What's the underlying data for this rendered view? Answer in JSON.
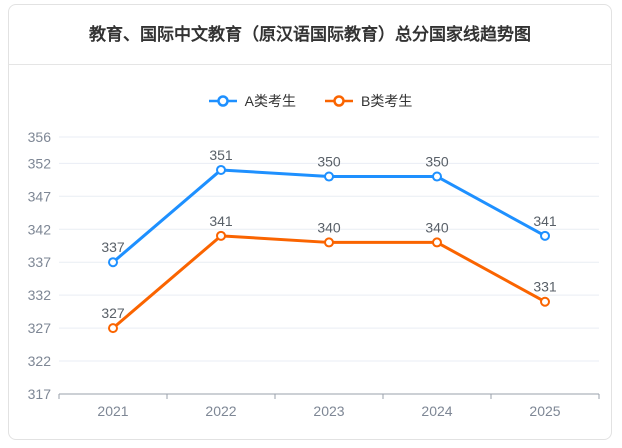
{
  "card": {
    "title": "教育、国际中文教育（原汉语国际教育）总分国家线趋势图"
  },
  "chart_data": {
    "type": "line",
    "title": "教育、国际中文教育（原汉语国际教育）总分国家线趋势图",
    "categories": [
      "2021",
      "2022",
      "2023",
      "2024",
      "2025"
    ],
    "series": [
      {
        "name": "A类考生",
        "color": "#1e90ff",
        "values": [
          337,
          351,
          350,
          350,
          341
        ]
      },
      {
        "name": "B类考生",
        "color": "#fa6400",
        "values": [
          327,
          341,
          340,
          340,
          331
        ]
      }
    ],
    "xlabel": "",
    "ylabel": "",
    "y_ticks": [
      317,
      322,
      327,
      332,
      337,
      342,
      347,
      352,
      356
    ],
    "ylim": [
      317,
      356
    ],
    "grid": true,
    "legend_position": "top",
    "data_labels": true,
    "marker_style": "hollow-circle",
    "colors": {
      "gridline": "#e9edf4",
      "axis_line": "#9aa1ab",
      "axis_label": "#7e8795",
      "data_label": "#596068",
      "title": "#333333"
    }
  }
}
